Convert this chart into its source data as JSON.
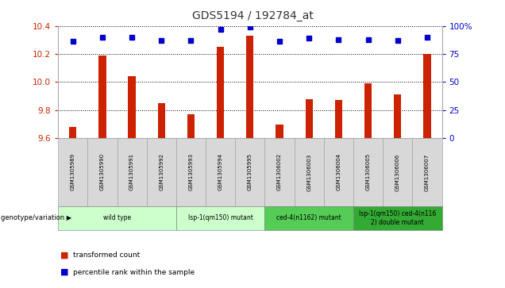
{
  "title": "GDS5194 / 192784_at",
  "samples": [
    "GSM1305989",
    "GSM1305990",
    "GSM1305991",
    "GSM1305992",
    "GSM1305993",
    "GSM1305994",
    "GSM1305995",
    "GSM1306002",
    "GSM1306003",
    "GSM1306004",
    "GSM1306005",
    "GSM1306006",
    "GSM1306007"
  ],
  "bar_values": [
    9.68,
    10.19,
    10.04,
    9.85,
    9.77,
    10.25,
    10.33,
    9.7,
    9.88,
    9.87,
    9.99,
    9.91,
    10.2
  ],
  "dot_values": [
    86,
    90,
    90,
    87,
    87,
    97,
    99,
    86,
    89,
    88,
    88,
    87,
    90
  ],
  "ylim_left": [
    9.6,
    10.4
  ],
  "ylim_right": [
    0,
    100
  ],
  "yticks_left": [
    9.6,
    9.8,
    10.0,
    10.2,
    10.4
  ],
  "yticks_right": [
    0,
    25,
    50,
    75,
    100
  ],
  "bar_color": "#cc2200",
  "dot_color": "#0000cc",
  "bar_bottom": 9.6,
  "groups": [
    {
      "label": "wild type",
      "start": 0,
      "end": 4,
      "color": "#ccffcc"
    },
    {
      "label": "lsp-1(qm150) mutant",
      "start": 4,
      "end": 7,
      "color": "#ccffcc"
    },
    {
      "label": "ced-4(n1162) mutant",
      "start": 7,
      "end": 10,
      "color": "#55cc55"
    },
    {
      "label": "lsp-1(qm150) ced-4(n116\n2) double mutant",
      "start": 10,
      "end": 13,
      "color": "#33aa33"
    }
  ],
  "group_label": "genotype/variation",
  "legend_items": [
    {
      "label": "transformed count",
      "color": "#cc2200"
    },
    {
      "label": "percentile rank within the sample",
      "color": "#0000cc"
    }
  ],
  "title_color": "#333333",
  "left_axis_color": "#cc2200",
  "right_axis_color": "#0000cc"
}
